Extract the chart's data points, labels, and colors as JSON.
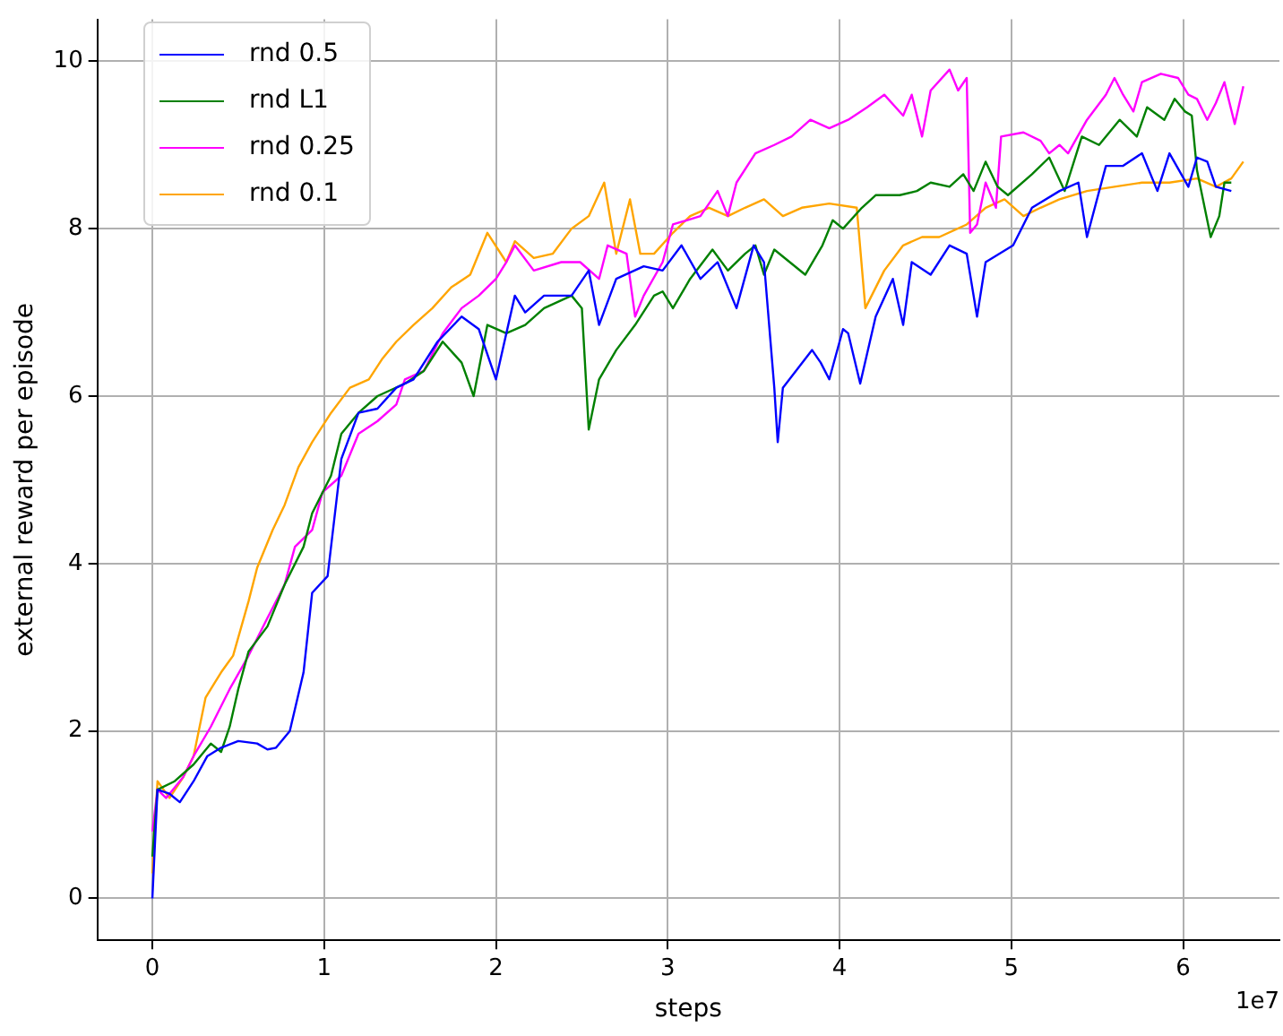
{
  "chart_data": {
    "type": "line",
    "xlabel": "steps",
    "ylabel": "external reward per episode",
    "annotations": [
      "1e7"
    ],
    "xlim": [
      -0.32,
      6.56
    ],
    "xticks": [
      0,
      1,
      2,
      3,
      4,
      5,
      6
    ],
    "ylim": [
      -0.5,
      10.5
    ],
    "yticks": [
      0,
      2,
      4,
      6,
      8,
      10
    ],
    "grid": true,
    "legend": "top left",
    "marker": "none",
    "line_style": "solid",
    "series": [
      {
        "name": "rnd 0.5",
        "color": "#0000ff",
        "x": [
          0,
          0.03,
          0.1,
          0.16,
          0.24,
          0.32,
          0.4,
          0.5,
          0.61,
          0.67,
          0.72,
          0.8,
          0.88,
          0.93,
          1.02,
          1.1,
          1.2,
          1.31,
          1.42,
          1.52,
          1.66,
          1.8,
          1.9,
          2.0,
          2.11,
          2.17,
          2.28,
          2.44,
          2.54,
          2.6,
          2.7,
          2.86,
          2.97,
          3.08,
          3.19,
          3.29,
          3.4,
          3.5,
          3.56,
          3.62,
          3.64,
          3.67,
          3.84,
          3.89,
          3.94,
          4.02,
          4.05,
          4.12,
          4.21,
          4.31,
          4.37,
          4.42,
          4.53,
          4.64,
          4.74,
          4.8,
          4.85,
          5.01,
          5.12,
          5.28,
          5.39,
          5.44,
          5.55,
          5.65,
          5.76,
          5.85,
          5.92,
          6.03,
          6.08,
          6.14,
          6.19,
          6.28
        ],
        "values": [
          0,
          1.3,
          1.25,
          1.15,
          1.4,
          1.7,
          1.8,
          1.88,
          1.85,
          1.78,
          1.8,
          2.0,
          2.7,
          3.65,
          3.85,
          5.25,
          5.8,
          5.85,
          6.1,
          6.2,
          6.65,
          6.95,
          6.8,
          6.2,
          7.2,
          7.0,
          7.2,
          7.2,
          7.5,
          6.85,
          7.4,
          7.55,
          7.5,
          7.8,
          7.4,
          7.6,
          7.05,
          7.8,
          7.6,
          6.1,
          5.45,
          6.1,
          6.55,
          6.4,
          6.2,
          6.8,
          6.75,
          6.15,
          6.95,
          7.4,
          6.85,
          7.6,
          7.45,
          7.8,
          7.7,
          6.95,
          7.6,
          7.8,
          8.25,
          8.45,
          8.55,
          7.9,
          8.75,
          8.75,
          8.9,
          8.45,
          8.9,
          8.5,
          8.85,
          8.8,
          8.5,
          8.45
        ]
      },
      {
        "name": "rnd L1",
        "color": "#008000",
        "x": [
          0,
          0.03,
          0.13,
          0.24,
          0.34,
          0.4,
          0.45,
          0.5,
          0.56,
          0.67,
          0.77,
          0.88,
          0.93,
          1.04,
          1.1,
          1.2,
          1.31,
          1.47,
          1.58,
          1.69,
          1.8,
          1.87,
          1.95,
          2.06,
          2.17,
          2.28,
          2.44,
          2.5,
          2.54,
          2.6,
          2.7,
          2.81,
          2.92,
          2.97,
          3.03,
          3.13,
          3.26,
          3.35,
          3.45,
          3.51,
          3.56,
          3.62,
          3.8,
          3.9,
          3.96,
          4.02,
          4.13,
          4.21,
          4.35,
          4.45,
          4.53,
          4.64,
          4.72,
          4.78,
          4.85,
          4.92,
          4.98,
          5.12,
          5.22,
          5.31,
          5.41,
          5.51,
          5.63,
          5.73,
          5.79,
          5.89,
          5.95,
          6.01,
          6.05,
          6.08,
          6.16,
          6.21,
          6.24,
          6.28
        ],
        "values": [
          0.5,
          1.3,
          1.4,
          1.6,
          1.85,
          1.75,
          2.05,
          2.5,
          2.95,
          3.25,
          3.75,
          4.2,
          4.6,
          5.05,
          5.55,
          5.8,
          6.0,
          6.15,
          6.3,
          6.65,
          6.4,
          6.0,
          6.85,
          6.75,
          6.85,
          7.05,
          7.2,
          7.05,
          5.6,
          6.2,
          6.55,
          6.85,
          7.2,
          7.25,
          7.05,
          7.4,
          7.75,
          7.5,
          7.7,
          7.8,
          7.45,
          7.75,
          7.45,
          7.8,
          8.1,
          8.0,
          8.25,
          8.4,
          8.4,
          8.45,
          8.55,
          8.5,
          8.65,
          8.45,
          8.8,
          8.5,
          8.4,
          8.65,
          8.85,
          8.45,
          9.1,
          9.0,
          9.3,
          9.1,
          9.45,
          9.3,
          9.55,
          9.4,
          9.35,
          8.7,
          7.9,
          8.15,
          8.55,
          8.55
        ]
      },
      {
        "name": "rnd 0.25",
        "color": "#ff00ff",
        "x": [
          0,
          0.03,
          0.08,
          0.18,
          0.24,
          0.34,
          0.45,
          0.56,
          0.67,
          0.77,
          0.83,
          0.93,
          0.99,
          1.1,
          1.2,
          1.31,
          1.42,
          1.47,
          1.58,
          1.69,
          1.8,
          1.9,
          2.0,
          2.06,
          2.11,
          2.22,
          2.38,
          2.49,
          2.6,
          2.65,
          2.76,
          2.81,
          2.86,
          2.97,
          3.03,
          3.19,
          3.29,
          3.35,
          3.4,
          3.51,
          3.62,
          3.72,
          3.83,
          3.94,
          4.05,
          4.16,
          4.26,
          4.37,
          4.42,
          4.48,
          4.53,
          4.64,
          4.69,
          4.74,
          4.76,
          4.8,
          4.85,
          4.91,
          4.94,
          5.07,
          5.17,
          5.22,
          5.28,
          5.33,
          5.44,
          5.55,
          5.6,
          5.65,
          5.71,
          5.76,
          5.87,
          5.97,
          6.03,
          6.08,
          6.14,
          6.19,
          6.24,
          6.3,
          6.35
        ],
        "values": [
          0.8,
          1.3,
          1.2,
          1.45,
          1.7,
          2.05,
          2.5,
          2.9,
          3.35,
          3.75,
          4.2,
          4.4,
          4.85,
          5.05,
          5.55,
          5.7,
          5.9,
          6.2,
          6.3,
          6.75,
          7.05,
          7.2,
          7.4,
          7.6,
          7.8,
          7.5,
          7.6,
          7.6,
          7.4,
          7.8,
          7.7,
          6.95,
          7.2,
          7.6,
          8.05,
          8.15,
          8.45,
          8.15,
          8.55,
          8.9,
          9.0,
          9.1,
          9.3,
          9.2,
          9.3,
          9.45,
          9.6,
          9.35,
          9.6,
          9.1,
          9.65,
          9.9,
          9.65,
          9.8,
          7.95,
          8.05,
          8.55,
          8.25,
          9.1,
          9.15,
          9.05,
          8.9,
          9.0,
          8.9,
          9.3,
          9.6,
          9.8,
          9.6,
          9.4,
          9.75,
          9.85,
          9.8,
          9.6,
          9.55,
          9.3,
          9.5,
          9.75,
          9.25,
          9.7
        ]
      },
      {
        "name": "rnd 0.1",
        "color": "#ffa500",
        "x": [
          0,
          0.03,
          0.1,
          0.18,
          0.24,
          0.31,
          0.4,
          0.47,
          0.56,
          0.61,
          0.7,
          0.77,
          0.85,
          0.93,
          1.04,
          1.15,
          1.26,
          1.34,
          1.42,
          1.52,
          1.63,
          1.74,
          1.85,
          1.95,
          2.06,
          2.11,
          2.22,
          2.33,
          2.44,
          2.54,
          2.63,
          2.7,
          2.78,
          2.84,
          2.92,
          3.03,
          3.13,
          3.24,
          3.35,
          3.45,
          3.56,
          3.67,
          3.78,
          3.94,
          4.1,
          4.15,
          4.26,
          4.37,
          4.48,
          4.58,
          4.74,
          4.85,
          4.96,
          5.07,
          5.17,
          5.28,
          5.44,
          5.6,
          5.76,
          5.92,
          6.08,
          6.19,
          6.28,
          6.35
        ],
        "values": [
          0.3,
          1.4,
          1.2,
          1.45,
          1.7,
          2.4,
          2.7,
          2.9,
          3.55,
          3.95,
          4.4,
          4.7,
          5.15,
          5.45,
          5.8,
          6.1,
          6.2,
          6.45,
          6.65,
          6.85,
          7.05,
          7.3,
          7.45,
          7.95,
          7.6,
          7.85,
          7.65,
          7.7,
          8.0,
          8.15,
          8.55,
          7.7,
          8.35,
          7.7,
          7.7,
          7.95,
          8.15,
          8.25,
          8.15,
          8.25,
          8.35,
          8.15,
          8.25,
          8.3,
          8.25,
          7.05,
          7.5,
          7.8,
          7.9,
          7.9,
          8.05,
          8.25,
          8.35,
          8.15,
          8.25,
          8.35,
          8.45,
          8.5,
          8.55,
          8.55,
          8.6,
          8.5,
          8.6,
          8.8
        ]
      }
    ]
  }
}
